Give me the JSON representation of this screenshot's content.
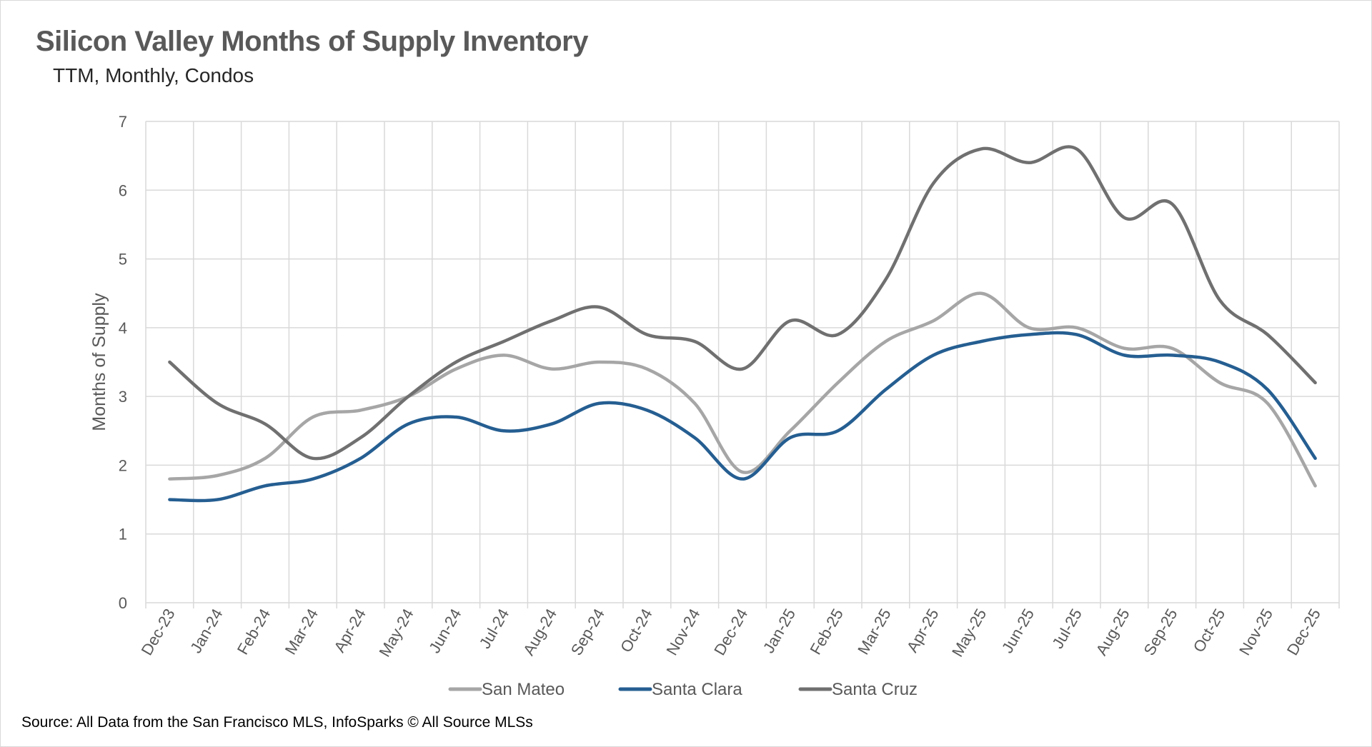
{
  "title": "Silicon Valley Months of Supply Inventory",
  "subtitle": "TTM, Monthly, Condos",
  "source": "Source: All Data from the San Francisco MLS, InfoSparks © All Source MLSs",
  "chart_data": {
    "type": "line",
    "title": "Silicon Valley Months of Supply Inventory",
    "subtitle": "TTM, Monthly, Condos",
    "xlabel": "",
    "ylabel": "Months of Supply",
    "ylim": [
      0,
      7
    ],
    "yticks": [
      "0",
      "1",
      "2",
      "3",
      "4",
      "5",
      "6",
      "7"
    ],
    "grid": true,
    "smooth": true,
    "legend": "bottom",
    "categories": [
      "Dec-23",
      "Jan-24",
      "Feb-24",
      "Mar-24",
      "Apr-24",
      "May-24",
      "Jun-24",
      "Jul-24",
      "Aug-24",
      "Sep-24",
      "Oct-24",
      "Nov-24",
      "Dec-24",
      "Jan-25",
      "Feb-25",
      "Mar-25",
      "Apr-25",
      "May-25",
      "Jun-25",
      "Jul-25",
      "Aug-25",
      "Sep-25",
      "Oct-25",
      "Nov-25",
      "Dec-25"
    ],
    "series": [
      {
        "name": "San Mateo",
        "color": "#a6a6a6",
        "values": [
          1.8,
          1.85,
          2.1,
          2.7,
          2.8,
          3.0,
          3.4,
          3.6,
          3.4,
          3.5,
          3.4,
          2.9,
          1.9,
          2.5,
          3.2,
          3.8,
          4.1,
          4.5,
          4.0,
          4.0,
          3.7,
          3.7,
          3.2,
          2.9,
          1.7
        ]
      },
      {
        "name": "Santa Clara",
        "color": "#255e91",
        "values": [
          1.5,
          1.5,
          1.7,
          1.8,
          2.1,
          2.6,
          2.7,
          2.5,
          2.6,
          2.9,
          2.8,
          2.4,
          1.8,
          2.4,
          2.5,
          3.1,
          3.6,
          3.8,
          3.9,
          3.9,
          3.6,
          3.6,
          3.5,
          3.1,
          2.1
        ]
      },
      {
        "name": "Santa Cruz",
        "color": "#707070",
        "values": [
          3.5,
          2.9,
          2.6,
          2.1,
          2.4,
          3.0,
          3.5,
          3.8,
          4.1,
          4.3,
          3.9,
          3.8,
          3.4,
          4.1,
          3.9,
          4.7,
          6.1,
          6.6,
          6.4,
          6.6,
          5.6,
          5.8,
          4.4,
          3.9,
          3.2
        ]
      }
    ]
  }
}
